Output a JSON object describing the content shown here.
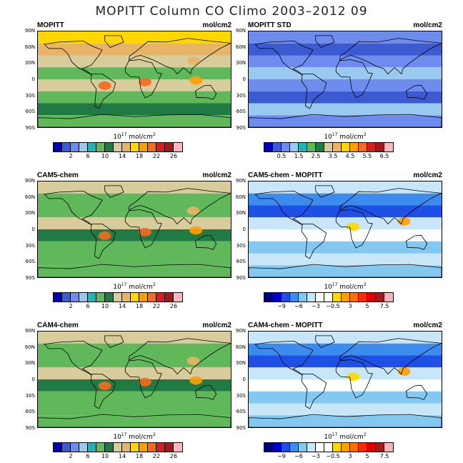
{
  "title": "MOPITT Column CO Climo 2003–2012 09",
  "units_base": "10",
  "units_exp": "17",
  "units_tail": " mol/cm",
  "units_sq": "2",
  "lat_labels": [
    "90N",
    "60N",
    "30N",
    "0",
    "30S",
    "60S",
    "90S"
  ],
  "colors": {
    "seq": [
      "#0000b4",
      "#3c5ad2",
      "#6e8cee",
      "#9ac8f0",
      "#22b4b4",
      "#60b85a",
      "#207a44",
      "#d8cc9c",
      "#e8b468",
      "#ffd700",
      "#ffa000",
      "#f46a1e",
      "#d22020",
      "#a01c1c",
      "#ffb8c0"
    ],
    "diff": [
      "#000078",
      "#0000c8",
      "#1e50e6",
      "#3c8cf0",
      "#82c8f0",
      "#c8e6f8",
      "#ffffff",
      "#ffffff",
      "#ffd700",
      "#ffa000",
      "#ff6e00",
      "#ff2800",
      "#dc0000",
      "#a01c1c",
      "#f8b4bc"
    ]
  },
  "chart_data": [
    {
      "type": "heatmap",
      "title": "MOPITT",
      "unit_label": "mol/cm2",
      "colorbar_ticks": [
        "2",
        "6",
        "10",
        "14",
        "18",
        "22",
        "26"
      ],
      "colorbar_scale": "seq",
      "lat_range": [
        "90S",
        "90N"
      ]
    },
    {
      "type": "heatmap",
      "title": "MOPITT STD",
      "unit_label": "mol/cm2",
      "colorbar_ticks": [
        "0.5",
        "1.5",
        "2.5",
        "3.5",
        "4.5",
        "5.5",
        "6.5"
      ],
      "colorbar_scale": "seq",
      "lat_range": [
        "90S",
        "90N"
      ]
    },
    {
      "type": "heatmap",
      "title": "CAM5-chem",
      "unit_label": "mol/cm2",
      "colorbar_ticks": [
        "2",
        "6",
        "10",
        "14",
        "18",
        "22",
        "26"
      ],
      "colorbar_scale": "seq",
      "lat_range": [
        "90S",
        "90N"
      ]
    },
    {
      "type": "heatmap",
      "title": "CAM5-chem - MOPITT",
      "unit_label": "mol/cm2",
      "colorbar_ticks": [
        "−9",
        "−6",
        "−3",
        "−0.5",
        "3",
        "5",
        "7.5"
      ],
      "colorbar_scale": "diff",
      "lat_range": [
        "90S",
        "90N"
      ]
    },
    {
      "type": "heatmap",
      "title": "CAM4-chem",
      "unit_label": "mol/cm2",
      "colorbar_ticks": [
        "2",
        "6",
        "10",
        "14",
        "18",
        "22",
        "26"
      ],
      "colorbar_scale": "seq",
      "lat_range": [
        "90S",
        "90N"
      ]
    },
    {
      "type": "heatmap",
      "title": "CAM4-chem - MOPITT",
      "unit_label": "mol/cm2",
      "colorbar_ticks": [
        "−9",
        "−6",
        "−3",
        "−0.5",
        "3",
        "5",
        "7.5"
      ],
      "colorbar_scale": "diff",
      "lat_range": [
        "90S",
        "90N"
      ]
    }
  ]
}
